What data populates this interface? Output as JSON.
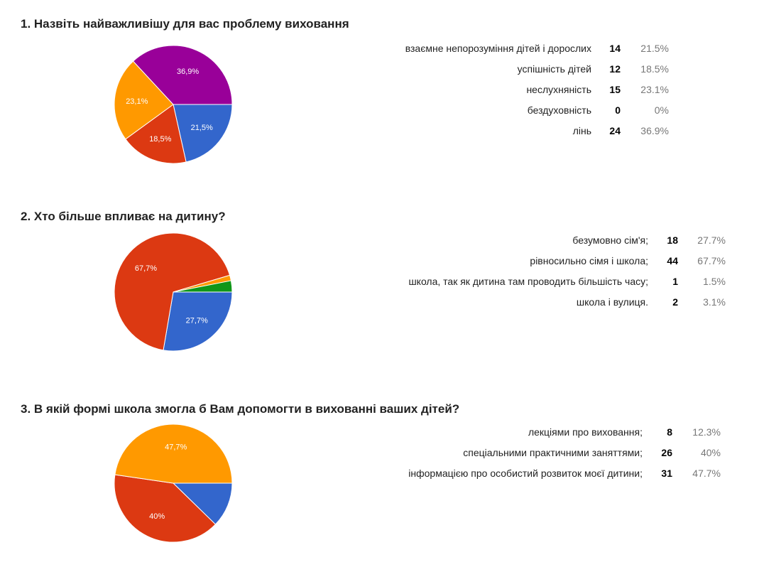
{
  "chart_data": [
    {
      "type": "pie",
      "title": "1. Назвіть найважливішу для вас проблему виховання",
      "slices": [
        {
          "label": "взаємне непорозуміння дітей і дорослих",
          "count": "14",
          "percent": "21.5%",
          "value": 21.5,
          "slice_label": "21,5%",
          "color": "#3366cc"
        },
        {
          "label": "успішність дітей",
          "count": "12",
          "percent": "18.5%",
          "value": 18.5,
          "slice_label": "18,5%",
          "color": "#dc3912"
        },
        {
          "label": "неслухняність",
          "count": "15",
          "percent": "23.1%",
          "value": 23.1,
          "slice_label": "23,1%",
          "color": "#ff9900"
        },
        {
          "label": "бездуховність",
          "count": "0",
          "percent": "0%",
          "value": 0,
          "slice_label": "",
          "color": "#109618"
        },
        {
          "label": "лінь",
          "count": "24",
          "percent": "36.9%",
          "value": 36.9,
          "slice_label": "36,9%",
          "color": "#990099"
        }
      ]
    },
    {
      "type": "pie",
      "title": "2. Хто більше впливає на дитину?",
      "slices": [
        {
          "label": "безумовно сім'я;",
          "count": "18",
          "percent": "27.7%",
          "value": 27.7,
          "slice_label": "27,7%",
          "color": "#3366cc"
        },
        {
          "label": "рівносильно сімя і школа;",
          "count": "44",
          "percent": "67.7%",
          "value": 67.7,
          "slice_label": "67,7%",
          "color": "#dc3912"
        },
        {
          "label": "школа, так як дитина там проводить більшість часу;",
          "count": "1",
          "percent": "1.5%",
          "value": 1.5,
          "slice_label": "",
          "color": "#ff9900"
        },
        {
          "label": "школа і вулиця.",
          "count": "2",
          "percent": "3.1%",
          "value": 3.1,
          "slice_label": "",
          "color": "#109618"
        }
      ]
    },
    {
      "type": "pie",
      "title": "3. В якій формі школа змогла б Вам допомогти в вихованні ваших дітей?",
      "slices": [
        {
          "label": "лекціями про виховання;",
          "count": "8",
          "percent": "12.3%",
          "value": 12.3,
          "slice_label": "",
          "color": "#3366cc"
        },
        {
          "label": "спеціальними практичними заняттями;",
          "count": "26",
          "percent": "40%",
          "value": 40,
          "slice_label": "40%",
          "color": "#dc3912"
        },
        {
          "label": "інформацією про особистий розвиток моєї дитини;",
          "count": "31",
          "percent": "47.7%",
          "value": 47.7,
          "slice_label": "47,7%",
          "color": "#ff9900"
        }
      ]
    }
  ]
}
